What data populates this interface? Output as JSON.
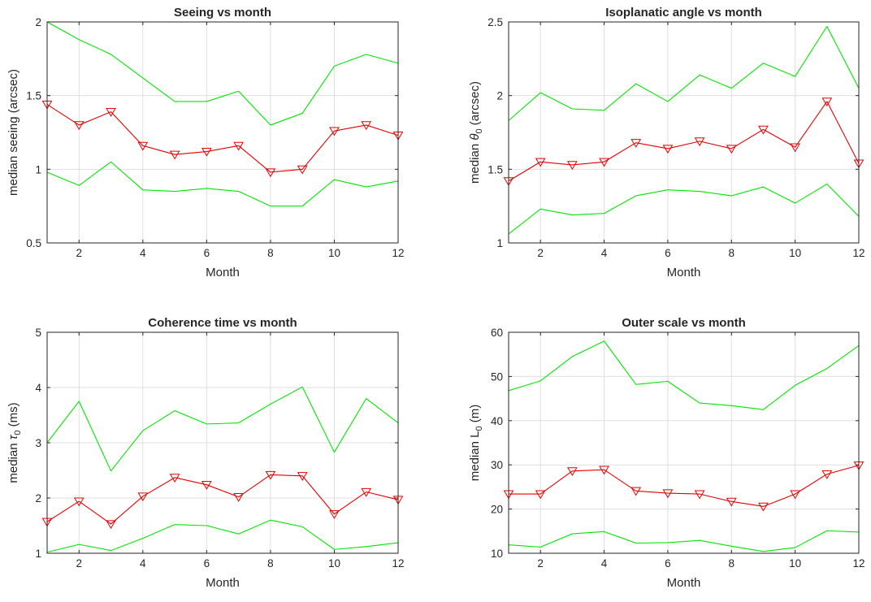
{
  "chart_data": [
    {
      "type": "line",
      "title": "Seeing vs month",
      "xlabel": "Month",
      "ylabel": "median seeing (arcsec)",
      "ylabel_parts": [],
      "xlim": [
        1,
        12
      ],
      "ylim": [
        0.5,
        2
      ],
      "xticks": [
        "2",
        "4",
        "6",
        "8",
        "10",
        "12"
      ],
      "yticks": [
        "0.5",
        "1",
        "1.5",
        "2"
      ],
      "grid": true,
      "x": [
        1,
        2,
        3,
        4,
        5,
        6,
        7,
        8,
        9,
        10,
        11,
        12
      ],
      "series": [
        {
          "role": "upper",
          "color": "#00e600",
          "values": [
            2.0,
            1.88,
            1.78,
            1.62,
            1.46,
            1.46,
            1.53,
            1.3,
            1.38,
            1.7,
            1.78,
            1.72
          ]
        },
        {
          "role": "median",
          "color": "#e60000",
          "marker": "triangle-down",
          "values": [
            1.44,
            1.3,
            1.39,
            1.16,
            1.1,
            1.12,
            1.16,
            0.98,
            1.0,
            1.26,
            1.3,
            1.23
          ]
        },
        {
          "role": "lower",
          "color": "#00e600",
          "values": [
            0.98,
            0.89,
            1.05,
            0.86,
            0.85,
            0.87,
            0.85,
            0.75,
            0.75,
            0.93,
            0.88,
            0.92
          ]
        }
      ]
    },
    {
      "type": "line",
      "title": "Isoplanatic angle vs month",
      "xlabel": "Month",
      "ylabel": "",
      "ylabel_parts": [
        "median ",
        "θ",
        "0",
        " (arcsec)"
      ],
      "xlim": [
        1,
        12
      ],
      "ylim": [
        1,
        2.5
      ],
      "xticks": [
        "2",
        "4",
        "6",
        "8",
        "10",
        "12"
      ],
      "yticks": [
        "1",
        "1.5",
        "2",
        "2.5"
      ],
      "grid": true,
      "x": [
        1,
        2,
        3,
        4,
        5,
        6,
        7,
        8,
        9,
        10,
        11,
        12
      ],
      "series": [
        {
          "role": "upper",
          "color": "#00e600",
          "values": [
            1.83,
            2.02,
            1.91,
            1.9,
            2.08,
            1.96,
            2.14,
            2.05,
            2.22,
            2.13,
            2.47,
            2.05
          ]
        },
        {
          "role": "median",
          "color": "#e60000",
          "marker": "triangle-down",
          "values": [
            1.42,
            1.55,
            1.53,
            1.55,
            1.68,
            1.64,
            1.69,
            1.64,
            1.77,
            1.65,
            1.96,
            1.54
          ]
        },
        {
          "role": "lower",
          "color": "#00e600",
          "values": [
            1.06,
            1.23,
            1.19,
            1.2,
            1.32,
            1.36,
            1.35,
            1.32,
            1.38,
            1.27,
            1.4,
            1.18
          ]
        }
      ]
    },
    {
      "type": "line",
      "title": "Coherence time vs month",
      "xlabel": "Month",
      "ylabel": "",
      "ylabel_parts": [
        "median ",
        "τ",
        "0",
        " (ms)"
      ],
      "xlim": [
        1,
        12
      ],
      "ylim": [
        1,
        5
      ],
      "xticks": [
        "2",
        "4",
        "6",
        "8",
        "10",
        "12"
      ],
      "yticks": [
        "1",
        "2",
        "3",
        "4",
        "5"
      ],
      "grid": true,
      "x": [
        1,
        2,
        3,
        4,
        5,
        6,
        7,
        8,
        9,
        10,
        11,
        12
      ],
      "series": [
        {
          "role": "upper",
          "color": "#00e600",
          "values": [
            3.0,
            3.75,
            2.49,
            3.22,
            3.58,
            3.34,
            3.36,
            3.7,
            4.01,
            2.83,
            3.8,
            3.36
          ]
        },
        {
          "role": "median",
          "color": "#e60000",
          "marker": "triangle-down",
          "values": [
            1.57,
            1.94,
            1.53,
            2.03,
            2.37,
            2.24,
            2.02,
            2.42,
            2.4,
            1.71,
            2.11,
            1.97
          ]
        },
        {
          "role": "lower",
          "color": "#00e600",
          "values": [
            1.02,
            1.16,
            1.05,
            1.27,
            1.52,
            1.5,
            1.35,
            1.6,
            1.48,
            1.07,
            1.12,
            1.19
          ]
        }
      ]
    },
    {
      "type": "line",
      "title": "Outer scale vs month",
      "xlabel": "Month",
      "ylabel": "",
      "ylabel_parts": [
        "median L",
        "",
        "0",
        " (m)"
      ],
      "xlim": [
        1,
        12
      ],
      "ylim": [
        10,
        60
      ],
      "xticks": [
        "2",
        "4",
        "6",
        "8",
        "10",
        "12"
      ],
      "yticks": [
        "10",
        "20",
        "30",
        "40",
        "50",
        "60"
      ],
      "grid": true,
      "x": [
        1,
        2,
        3,
        4,
        5,
        6,
        7,
        8,
        9,
        10,
        11,
        12
      ],
      "series": [
        {
          "role": "upper",
          "color": "#00e600",
          "values": [
            46.8,
            49.0,
            54.5,
            58.0,
            48.2,
            48.9,
            44.0,
            43.4,
            42.5,
            48.0,
            51.8,
            57.0
          ]
        },
        {
          "role": "median",
          "color": "#e60000",
          "marker": "triangle-down",
          "values": [
            23.4,
            23.4,
            28.6,
            28.9,
            24.1,
            23.6,
            23.4,
            21.7,
            20.6,
            23.4,
            27.9,
            29.9
          ]
        },
        {
          "role": "lower",
          "color": "#00e600",
          "values": [
            11.9,
            11.4,
            14.4,
            14.9,
            12.3,
            12.4,
            12.9,
            11.6,
            10.4,
            11.3,
            15.1,
            14.8
          ]
        }
      ]
    }
  ]
}
